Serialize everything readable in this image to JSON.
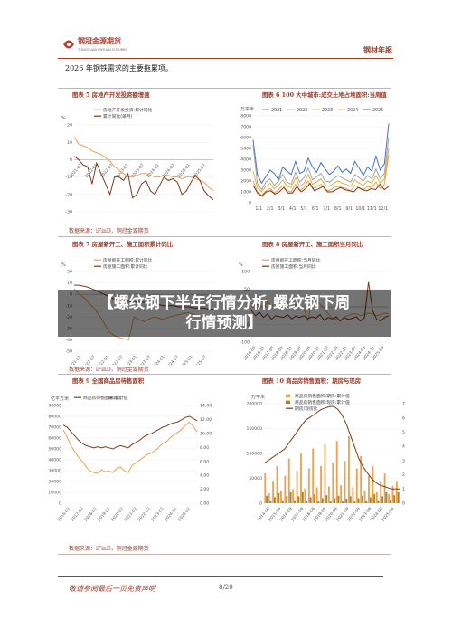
{
  "header": {
    "logo_text": "钢冠金源期货",
    "logo_sub": "TONGGUAN JINYUAN FUTURES",
    "report_name": "钢材年报"
  },
  "intro": "2026 年钢铁需求的主要拖累项。",
  "source_text": "数据来源：iFinD，铜冠金源期货",
  "banner": {
    "line1": "【螺纹钢下半年行情分析,螺纹钢下周",
    "line2": "行情预测】"
  },
  "footer": {
    "disclaimer": "敬请参阅最后一页免责声明",
    "page": "8/20"
  },
  "colors": {
    "accent": "#9a3b2a",
    "orange": "#f0a050",
    "brown": "#7b3a1a",
    "blue": "#4472c4",
    "gray": "#a5a5a5",
    "gold": "#e0b040"
  },
  "chart_data": [
    {
      "id": "fig5",
      "title": "图表 5 房地产开发投资额增速",
      "type": "line",
      "yunit": "%",
      "ylim": [
        -30,
        20
      ],
      "yticks": [
        "20",
        "10",
        "0",
        "-10",
        "-20",
        "-30"
      ],
      "xticks": [
        "2021-07",
        "2022-01",
        "2022-07",
        "2023-01",
        "2023-07",
        "2024-01",
        "2024-07",
        "2025-01",
        "2025-07"
      ],
      "series": [
        {
          "name": "房地产开发投资:累计同比",
          "color": "#f0a050",
          "values": [
            13,
            9,
            8,
            7,
            5,
            4,
            3,
            1,
            -1,
            -4,
            -6,
            -8,
            -10,
            -10,
            -9,
            -8,
            -8,
            -9,
            -10,
            -10,
            -9,
            -9,
            -10,
            -10,
            -11,
            -10,
            -10,
            -11,
            -12,
            -13,
            -16,
            -18
          ]
        },
        {
          "name": "累计同比(单月)",
          "color": "#7b3a1a",
          "values": [
            2,
            0,
            -3,
            -4,
            -14,
            -2,
            -8,
            -14,
            -20,
            -10,
            -10,
            -12,
            -8,
            -22,
            -20,
            -14,
            -12,
            -18,
            -20,
            -15,
            -10,
            -12,
            -11,
            -13,
            -20,
            -18,
            -13,
            -9,
            -12,
            -18,
            -21,
            -23
          ]
        }
      ]
    },
    {
      "id": "fig6",
      "title": "图表 6 100 大中城市:成交土地占地面积:当周值",
      "type": "line",
      "yunit": "万平米",
      "ylim": [
        0,
        8000
      ],
      "yticks": [
        "8000",
        "7000",
        "6000",
        "5000",
        "4000",
        "3000",
        "2000",
        "1000",
        "0"
      ],
      "xticks": [
        "1/1",
        "2/1",
        "3/1",
        "4/1",
        "5/1",
        "6/1",
        "7/1",
        "8/1",
        "9/1",
        "10/1",
        "11/1",
        "12/1"
      ],
      "series": [
        {
          "name": "2021",
          "color": "#4472c4",
          "values": [
            5800,
            2600,
            1800,
            2400,
            3000,
            2700,
            2100,
            3300,
            2900,
            2600,
            3800,
            2700,
            2900,
            4100,
            3300,
            2800,
            3700,
            3100,
            2600,
            2900,
            3400,
            2800,
            3100,
            2700,
            3800,
            3200,
            2500,
            3300,
            2900,
            4300,
            3000,
            3600,
            7300
          ]
        },
        {
          "name": "2022",
          "color": "#a5a5a5",
          "values": [
            5300,
            1800,
            1200,
            1900,
            2200,
            1600,
            2000,
            2600,
            1900,
            1700,
            2800,
            1900,
            2300,
            3200,
            2100,
            2400,
            2700,
            2000,
            1900,
            2200,
            2500,
            2300,
            2100,
            1900,
            2600,
            2300,
            2000,
            2500,
            2200,
            3100,
            2200,
            2700,
            6000
          ]
        },
        {
          "name": "2023",
          "color": "#e0b040",
          "values": [
            2900,
            1400,
            1000,
            1500,
            1800,
            1300,
            1600,
            2100,
            1500,
            1400,
            2300,
            1500,
            1800,
            2600,
            1700,
            1900,
            2200,
            1600,
            1500,
            1800,
            2000,
            1800,
            1700,
            1500,
            2100,
            1800,
            1600,
            2000,
            1800,
            2500,
            1800,
            2200,
            5000
          ]
        },
        {
          "name": "2024",
          "color": "#f0a050",
          "values": [
            2000,
            1000,
            700,
            1100,
            1300,
            900,
            1200,
            1600,
            1100,
            1000,
            1700,
            1100,
            1400,
            2000,
            1300,
            1500,
            1700,
            1200,
            1100,
            1400,
            1500,
            1400,
            1300,
            1100,
            1600,
            1400,
            1200,
            1500,
            1400,
            1900,
            1300,
            1700,
            4400
          ]
        },
        {
          "name": "2025",
          "color": "#7b3a1a",
          "values": [
            1600,
            900,
            600,
            1000,
            1100,
            800,
            1000,
            1400,
            900,
            900,
            1500,
            1000,
            1300,
            1800,
            1100,
            1300,
            1500,
            1000,
            1000,
            1200,
            1400,
            1200,
            1100,
            1000,
            1400,
            1200,
            1100,
            1300,
            1200,
            1700,
            1200,
            1500
          ]
        }
      ]
    },
    {
      "id": "fig7",
      "title": "图表 7 房屋新开工、施工面积累计同比",
      "type": "line",
      "yunit": "%",
      "ylim": [
        -50,
        20
      ],
      "yticks": [
        "20",
        "10",
        "0",
        "-10",
        "-20",
        "-30",
        "-40",
        "-50"
      ],
      "xticks": [
        "2021-01",
        "2021-07",
        "2022-01",
        "2022-07",
        "2023-01",
        "2023-07",
        "2024-01",
        "2024-07",
        "2025-01",
        "2025-07"
      ],
      "series": [
        {
          "name": "房屋新开工面积:累计同比",
          "color": "#f0a050",
          "values": [
            5,
            0,
            -3,
            -8,
            -12,
            -18,
            -25,
            -33,
            -36,
            -38,
            -39,
            -40,
            -20,
            -22,
            -24,
            -22,
            -20,
            -21,
            -22,
            -20,
            -19,
            -18,
            -17,
            -16,
            -18,
            -19,
            -20,
            -19,
            -20
          ]
        },
        {
          "name": "房屋施工面积:累计同比",
          "color": "#7b3a1a",
          "values": [
            8,
            8,
            7,
            6,
            4,
            2,
            0,
            -2,
            -4,
            -5,
            -6,
            -6,
            -7,
            -7,
            -7,
            -8,
            -8,
            -9,
            -10,
            -10,
            -10,
            -11,
            -11,
            -11,
            -12,
            -12,
            -12,
            -13,
            -13
          ]
        }
      ]
    },
    {
      "id": "fig8",
      "title": "图表 8 房屋新开工、施工面积当月同比",
      "type": "line",
      "yunit": "%",
      "ylim": [
        -100,
        100
      ],
      "yticks": [
        "100",
        "50",
        "0",
        "-50",
        "-100"
      ],
      "xticks": [
        "2016-03",
        "2016-11",
        "2017-07",
        "2018-03",
        "2018-11",
        "2019-07",
        "2020-03",
        "2020-11",
        "2021-07",
        "2022-03",
        "2022-11",
        "2023-07",
        "2024-03",
        "2024-11",
        "2025-09"
      ],
      "series": [
        {
          "name": "房屋新开工面积:当月同比",
          "color": "#f0a050",
          "values": [
            10,
            5,
            8,
            -5,
            15,
            2,
            10,
            5,
            -8,
            12,
            4,
            6,
            2,
            -4,
            -40,
            20,
            15,
            8,
            -5,
            -20,
            -30,
            -35,
            -40,
            -28,
            -25,
            -20,
            -20,
            -25,
            -22,
            -18,
            -20,
            -25,
            -22,
            -18,
            -20
          ]
        },
        {
          "name": "房屋施工面积:当月同比",
          "color": "#7b3a1a",
          "values": [
            -10,
            -25,
            -15,
            -30,
            -20,
            -35,
            -25,
            -28,
            -30,
            -22,
            -34,
            -26,
            -30,
            -25,
            -33,
            -28,
            -32,
            -22,
            -38,
            -30,
            -34,
            -28,
            -40,
            -30,
            -36,
            -32,
            -28,
            -40,
            -30,
            70,
            -10,
            -35,
            -40,
            -30,
            -25
          ]
        }
      ]
    },
    {
      "id": "fig9",
      "title": "图表 9 全国商品房待售面积",
      "type": "line",
      "yunit": "亿平方米",
      "ylim": [
        0,
        90000
      ],
      "yticks": [
        "90000",
        "80000",
        "70000",
        "60000",
        "50000",
        "40000",
        "30000",
        "20000",
        "10000",
        "0"
      ],
      "y2ticks": [
        "14.00",
        "12.00",
        "10.00",
        "8.00",
        "6.00",
        "4.00",
        "2.00",
        "0.00"
      ],
      "y2lim": [
        0,
        14
      ],
      "xticks": [
        "2016-02",
        "2017-02",
        "2018-02",
        "2019-02",
        "2020-02",
        "2021-02",
        "2022-02",
        "2023-02",
        "2024-02",
        "2025-02"
      ],
      "series": [
        {
          "name": "商品房待售面积:累计值",
          "color": "#7b3a1a",
          "values": [
            72000,
            70000,
            66000,
            62000,
            58000,
            55000,
            53000,
            52000,
            51000,
            52000,
            51000,
            52000,
            51000,
            50000,
            52000,
            53000,
            52000,
            51000,
            54000,
            56000,
            58000,
            61000,
            63000,
            64000,
            66000,
            68000,
            70000,
            71000,
            73000,
            74000,
            75000,
            77000,
            79000,
            80000,
            78000,
            76000
          ]
        },
        {
          "name": "库消比",
          "color": "#f0a050",
          "values": [
            10.5,
            9.5,
            8.2,
            7.4,
            6.6,
            6.0,
            5.2,
            4.6,
            4.4,
            4.3,
            4.8,
            4.5,
            4.6,
            4.4,
            5.0,
            5.2,
            4.6,
            4.4,
            5.4,
            5.8,
            6.2,
            6.6,
            7.0,
            7.2,
            7.5,
            8.0,
            8.6,
            8.8,
            9.4,
            9.8,
            10.2,
            10.6,
            11.2,
            11.6,
            11.0,
            10.2
          ]
        }
      ]
    },
    {
      "id": "fig10",
      "title": "图表 10 商品房销售面积：期房与现房",
      "type": "bar",
      "yunit": "万平米",
      "ylim": [
        0,
        200000
      ],
      "yticks": [
        "200000",
        "150000",
        "100000",
        "50000",
        "0"
      ],
      "y2ticks": [
        "7",
        "6",
        "5",
        "4",
        "3",
        "2",
        "1",
        "0"
      ],
      "y2lim": [
        0,
        7
      ],
      "xticks": [
        "2014-09",
        "2015-09",
        "2016-09",
        "2017-09",
        "2018-09",
        "2019-09",
        "2020-09",
        "2021-09",
        "2022-09",
        "2023-09",
        "2024-09",
        "2025-09"
      ],
      "series": [
        {
          "name": "商品房销售面积:期房:累计值",
          "color": "#f0a050",
          "values": [
            60000,
            20000,
            45000,
            75000,
            25000,
            55000,
            90000,
            28000,
            65000,
            100000,
            30000,
            70000,
            110000,
            32000,
            75000,
            118000,
            34000,
            82000,
            125000,
            36000,
            85000,
            135000,
            32000,
            70000,
            95000,
            26000,
            55000,
            75000,
            22000,
            45000,
            60000,
            18000,
            35000,
            45000
          ]
        },
        {
          "name": "商品房销售面积:现房:累计值",
          "color": "#9c8a2e",
          "values": [
            15000,
            5000,
            12000,
            20000,
            6000,
            14000,
            22000,
            6000,
            14000,
            22000,
            5000,
            12000,
            18000,
            4000,
            10000,
            16000,
            4000,
            10000,
            15000,
            4000,
            9000,
            14000,
            4000,
            10000,
            15000,
            5000,
            12000,
            18000,
            6000,
            14000,
            22000,
            7000,
            16000,
            22000
          ]
        },
        {
          "name": "期房/现房比",
          "color": "#7b3a1a",
          "values": [
            2.8,
            3.0,
            3.2,
            3.4,
            3.6,
            3.8,
            4.2,
            4.6,
            5.0,
            5.4,
            5.8,
            6.0,
            6.2,
            6.4,
            6.6,
            6.7,
            6.8,
            6.8,
            6.6,
            6.2,
            5.6,
            4.8,
            4.0,
            3.2,
            2.6,
            2.2,
            1.8,
            1.5,
            1.3,
            1.2,
            1.1,
            1.0,
            1.0,
            1.0
          ]
        }
      ]
    }
  ]
}
